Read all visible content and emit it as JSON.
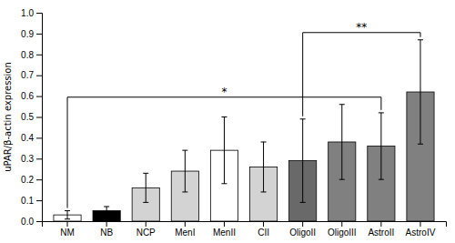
{
  "chart_data": {
    "type": "bar",
    "categories": [
      "NM",
      "NB",
      "NCP",
      "MenI",
      "MenII",
      "CII",
      "OligoII",
      "OligoIII",
      "AstroII",
      "AstroIV"
    ],
    "values": [
      0.03,
      0.05,
      0.16,
      0.24,
      0.34,
      0.26,
      0.29,
      0.38,
      0.36,
      0.62
    ],
    "errors": [
      0.02,
      0.02,
      0.07,
      0.1,
      0.16,
      0.12,
      0.2,
      0.18,
      0.16,
      0.25
    ],
    "colors": [
      "white",
      "black",
      "lightgray",
      "lightgray",
      "white",
      "lightgray",
      "dimgray",
      "gray",
      "gray",
      "gray"
    ],
    "ylabel": "uPAR/β-actin expression",
    "ylim": [
      0,
      1.0
    ],
    "yticks": [
      {
        "value": 0.0,
        "label": "0.0"
      },
      0.1,
      0.2,
      0.3,
      0.4,
      0.5,
      0.6,
      0.7,
      0.8,
      0.9,
      {
        "value": 1.0,
        "label": "1.0"
      }
    ],
    "annotations": [
      {
        "text": "*",
        "between": [
          "NM",
          "AstroII"
        ]
      },
      {
        "text": "**",
        "between": [
          "OligoII",
          "AstroIV"
        ]
      }
    ],
    "grid": false
  }
}
